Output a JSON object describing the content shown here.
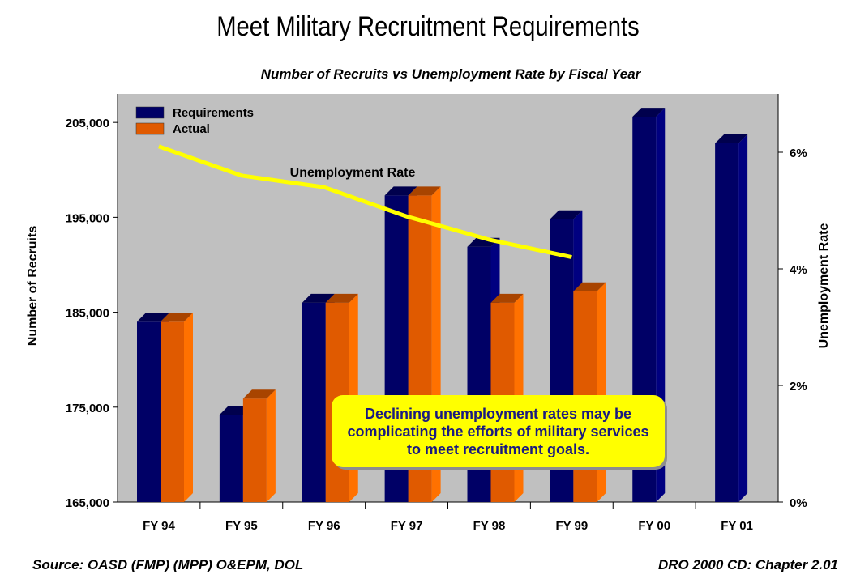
{
  "title": "Meet Military Recruitment Requirements",
  "chart_data": {
    "type": "bar",
    "title": "Number of Recruits vs Unemployment Rate by Fiscal Year",
    "categories": [
      "FY 94",
      "FY 95",
      "FY 96",
      "FY 97",
      "FY 98",
      "FY 99",
      "FY 00",
      "FY 01"
    ],
    "series": [
      {
        "name": "Requirements",
        "color": "#000066",
        "values": [
          184000,
          174200,
          186000,
          197300,
          191900,
          194800,
          205600,
          202800
        ]
      },
      {
        "name": "Actual",
        "color": "#e05a00",
        "values": [
          184000,
          175900,
          186000,
          197300,
          186000,
          187200,
          null,
          null
        ]
      }
    ],
    "line_series": {
      "name": "Unemployment Rate",
      "color": "#ffff00",
      "axis": "right",
      "values": [
        6.1,
        5.6,
        5.4,
        4.9,
        4.5,
        4.2,
        null,
        null
      ]
    },
    "ylabel": "Number of Recruits",
    "ylim": [
      165000,
      208000
    ],
    "yticks": [
      165000,
      175000,
      185000,
      195000,
      205000
    ],
    "ytick_labels": [
      "165,000",
      "175,000",
      "185,000",
      "195,000",
      "205,000"
    ],
    "y2label": "Unemployment Rate",
    "y2lim": [
      0,
      7
    ],
    "y2ticks": [
      0,
      2,
      4,
      6
    ],
    "y2tick_labels": [
      "0%",
      "2%",
      "4%",
      "6%"
    ],
    "legend": "top-left",
    "line_label": "Unemployment Rate",
    "annotation": "Declining unemployment rates may be complicating the efforts of  military services to meet recruitment goals.",
    "grid": false,
    "plot_background": "#c0c0c0"
  },
  "footer": {
    "source": "Source:  OASD (FMP) (MPP) O&EPM, DOL",
    "reference": "DRO 2000 CD: Chapter 2.01"
  }
}
